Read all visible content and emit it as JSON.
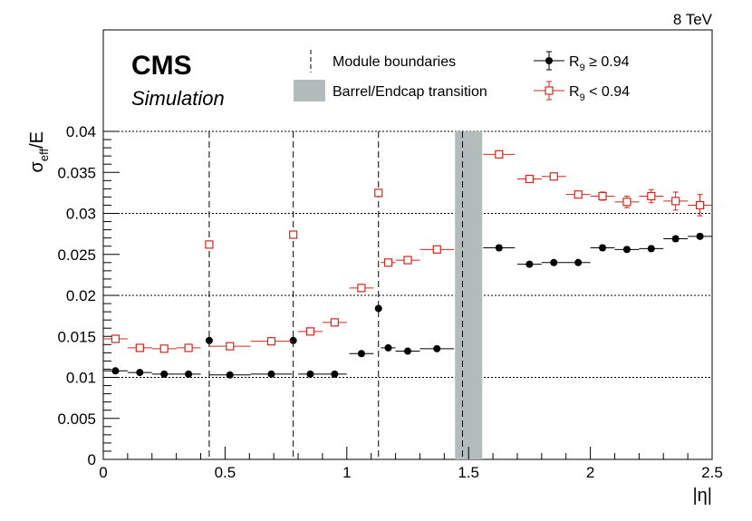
{
  "chart_data": {
    "type": "scatter",
    "energy_label": "8 TeV",
    "experiment": "CMS",
    "experiment_sub": "Simulation",
    "xlabel": "|η|",
    "ylabel": {
      "main": "σ",
      "sub": "eff",
      "tail": "/E"
    },
    "xlim": [
      0,
      2.5
    ],
    "ylim": [
      0,
      0.04
    ],
    "x_ticks": [
      0,
      0.5,
      1,
      1.5,
      2,
      2.5
    ],
    "x_tick_labels": [
      "0",
      "0.5",
      "1",
      "1.5",
      "2",
      "2.5"
    ],
    "y_ticks": [
      0,
      0.005,
      0.01,
      0.015,
      0.02,
      0.025,
      0.03,
      0.035,
      0.04
    ],
    "y_tick_labels": [
      "0",
      "0.005",
      "0.01",
      "0.015",
      "0.02",
      "0.025",
      "0.03",
      "0.035",
      "0.04"
    ],
    "grid": {
      "horizontal_dotted_at": [
        0.01,
        0.02,
        0.03,
        0.04
      ]
    },
    "module_boundaries": [
      0.435,
      0.78,
      1.13,
      1.475
    ],
    "transition_band": [
      1.4442,
      1.556
    ],
    "legend": {
      "placement": "top",
      "boundaries_label": "Module boundaries",
      "transition_label": "Barrel/Endcap transition",
      "series_labels": [
        {
          "main": "R",
          "sub": "9",
          "tail": " ≥ 0.94"
        },
        {
          "main": "R",
          "sub": "9",
          "tail": " < 0.94"
        }
      ]
    },
    "series": [
      {
        "name": "R9 ≥ 0.94",
        "marker": "filled-circle",
        "color": "#000000",
        "points": [
          {
            "x": 0.05,
            "y": 0.0108,
            "xerr": 0.05,
            "yerr": 0.0002
          },
          {
            "x": 0.15,
            "y": 0.0106,
            "xerr": 0.05,
            "yerr": 0.0002
          },
          {
            "x": 0.25,
            "y": 0.0104,
            "xerr": 0.05,
            "yerr": 0.0002
          },
          {
            "x": 0.35,
            "y": 0.0104,
            "xerr": 0.05,
            "yerr": 0.0002
          },
          {
            "x": 0.435,
            "y": 0.0145,
            "xerr": 0.003,
            "yerr": 0.0002
          },
          {
            "x": 0.52,
            "y": 0.0103,
            "xerr": 0.085,
            "yerr": 0.0002
          },
          {
            "x": 0.69,
            "y": 0.0104,
            "xerr": 0.085,
            "yerr": 0.0002
          },
          {
            "x": 0.78,
            "y": 0.0145,
            "xerr": 0.003,
            "yerr": 0.0002
          },
          {
            "x": 0.85,
            "y": 0.0104,
            "xerr": 0.05,
            "yerr": 0.0002
          },
          {
            "x": 0.95,
            "y": 0.0104,
            "xerr": 0.05,
            "yerr": 0.0002
          },
          {
            "x": 1.06,
            "y": 0.0129,
            "xerr": 0.05,
            "yerr": 0.0002
          },
          {
            "x": 1.13,
            "y": 0.0184,
            "xerr": 0.003,
            "yerr": 0.0002
          },
          {
            "x": 1.17,
            "y": 0.0136,
            "xerr": 0.03,
            "yerr": 0.0002
          },
          {
            "x": 1.25,
            "y": 0.0132,
            "xerr": 0.05,
            "yerr": 0.0002
          },
          {
            "x": 1.37,
            "y": 0.0135,
            "xerr": 0.07,
            "yerr": 0.0002
          },
          {
            "x": 1.625,
            "y": 0.0258,
            "xerr": 0.065,
            "yerr": 0.0003
          },
          {
            "x": 1.75,
            "y": 0.0238,
            "xerr": 0.05,
            "yerr": 0.0002
          },
          {
            "x": 1.85,
            "y": 0.024,
            "xerr": 0.05,
            "yerr": 0.0002
          },
          {
            "x": 1.95,
            "y": 0.024,
            "xerr": 0.05,
            "yerr": 0.0002
          },
          {
            "x": 2.05,
            "y": 0.0258,
            "xerr": 0.05,
            "yerr": 0.0003
          },
          {
            "x": 2.15,
            "y": 0.0256,
            "xerr": 0.05,
            "yerr": 0.0003
          },
          {
            "x": 2.25,
            "y": 0.0257,
            "xerr": 0.05,
            "yerr": 0.0003
          },
          {
            "x": 2.35,
            "y": 0.0269,
            "xerr": 0.05,
            "yerr": 0.0003
          },
          {
            "x": 2.45,
            "y": 0.0272,
            "xerr": 0.05,
            "yerr": 0.0003
          }
        ]
      },
      {
        "name": "R9 < 0.94",
        "marker": "open-square",
        "color": "#d0281e",
        "points": [
          {
            "x": 0.05,
            "y": 0.0147,
            "xerr": 0.05,
            "yerr": 0.0002
          },
          {
            "x": 0.15,
            "y": 0.0136,
            "xerr": 0.05,
            "yerr": 0.0002
          },
          {
            "x": 0.25,
            "y": 0.0135,
            "xerr": 0.05,
            "yerr": 0.0002
          },
          {
            "x": 0.35,
            "y": 0.0136,
            "xerr": 0.05,
            "yerr": 0.0002
          },
          {
            "x": 0.435,
            "y": 0.0262,
            "xerr": 0.003,
            "yerr": 0.0003
          },
          {
            "x": 0.52,
            "y": 0.0138,
            "xerr": 0.085,
            "yerr": 0.0002
          },
          {
            "x": 0.69,
            "y": 0.0144,
            "xerr": 0.085,
            "yerr": 0.0002
          },
          {
            "x": 0.78,
            "y": 0.0274,
            "xerr": 0.003,
            "yerr": 0.0003
          },
          {
            "x": 0.85,
            "y": 0.0156,
            "xerr": 0.05,
            "yerr": 0.0002
          },
          {
            "x": 0.95,
            "y": 0.0167,
            "xerr": 0.05,
            "yerr": 0.0002
          },
          {
            "x": 1.06,
            "y": 0.0209,
            "xerr": 0.05,
            "yerr": 0.0002
          },
          {
            "x": 1.13,
            "y": 0.0325,
            "xerr": 0.003,
            "yerr": 0.0003
          },
          {
            "x": 1.17,
            "y": 0.024,
            "xerr": 0.03,
            "yerr": 0.0002
          },
          {
            "x": 1.25,
            "y": 0.0243,
            "xerr": 0.05,
            "yerr": 0.0002
          },
          {
            "x": 1.37,
            "y": 0.0256,
            "xerr": 0.07,
            "yerr": 0.0002
          },
          {
            "x": 1.625,
            "y": 0.0372,
            "xerr": 0.065,
            "yerr": 0.0003
          },
          {
            "x": 1.75,
            "y": 0.0342,
            "xerr": 0.05,
            "yerr": 0.0003
          },
          {
            "x": 1.85,
            "y": 0.0345,
            "xerr": 0.05,
            "yerr": 0.0003
          },
          {
            "x": 1.95,
            "y": 0.0323,
            "xerr": 0.05,
            "yerr": 0.0003
          },
          {
            "x": 2.05,
            "y": 0.0321,
            "xerr": 0.05,
            "yerr": 0.0005
          },
          {
            "x": 2.15,
            "y": 0.0314,
            "xerr": 0.05,
            "yerr": 0.0007
          },
          {
            "x": 2.25,
            "y": 0.0321,
            "xerr": 0.05,
            "yerr": 0.0008
          },
          {
            "x": 2.35,
            "y": 0.0315,
            "xerr": 0.05,
            "yerr": 0.0011
          },
          {
            "x": 2.45,
            "y": 0.031,
            "xerr": 0.05,
            "yerr": 0.0013
          }
        ]
      }
    ]
  }
}
